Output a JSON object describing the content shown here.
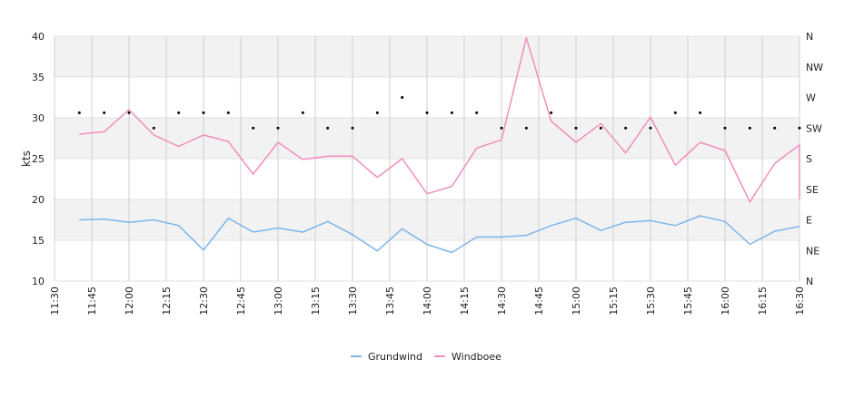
{
  "chart_data": {
    "type": "line",
    "ylabel": "kts",
    "ylim": [
      10,
      40
    ],
    "y_ticks": [
      10,
      15,
      20,
      25,
      30,
      35,
      40
    ],
    "right_axis": {
      "type": "wind-direction",
      "ticks": [
        "N",
        "NE",
        "E",
        "SE",
        "S",
        "SW",
        "W",
        "NW",
        "N"
      ]
    },
    "x_range": [
      "11:30",
      "16:30"
    ],
    "x_tick_labels": [
      "11:30",
      "11:45",
      "12:00",
      "12:15",
      "12:30",
      "12:45",
      "13:00",
      "13:15",
      "13:30",
      "13:45",
      "14:00",
      "14:15",
      "14:30",
      "14:45",
      "15:00",
      "15:15",
      "15:30",
      "15:45",
      "16:00",
      "16:15",
      "16:30"
    ],
    "x": [
      "11:40",
      "11:50",
      "12:00",
      "12:10",
      "12:20",
      "12:30",
      "12:40",
      "12:50",
      "13:00",
      "13:10",
      "13:20",
      "13:30",
      "13:40",
      "13:50",
      "14:00",
      "14:10",
      "14:20",
      "14:30",
      "14:40",
      "14:50",
      "15:00",
      "15:10",
      "15:20",
      "15:30",
      "15:40",
      "15:50",
      "16:00",
      "16:10",
      "16:20",
      "16:30"
    ],
    "series": [
      {
        "name": "Grundwind",
        "color": "#7cb5ec",
        "values": [
          17.5,
          17.6,
          17.2,
          17.5,
          16.8,
          13.8,
          17.7,
          16.0,
          16.5,
          16.0,
          17.3,
          15.7,
          13.7,
          16.4,
          14.5,
          13.5,
          15.4,
          15.4,
          15.6,
          16.8,
          17.7,
          16.2,
          17.2,
          17.4,
          16.8,
          18.0,
          17.3,
          14.5,
          16.1,
          16.7
        ]
      },
      {
        "name": "Windboee",
        "color": "#f18dbf",
        "values": [
          28.0,
          28.3,
          31.0,
          27.9,
          26.5,
          27.9,
          27.1,
          23.1,
          27.0,
          24.9,
          25.3,
          25.3,
          22.7,
          25.0,
          20.7,
          21.6,
          26.3,
          27.3,
          39.8,
          29.6,
          27.0,
          29.3,
          25.7,
          30.1,
          24.2,
          27.0,
          26.0,
          19.7,
          24.4,
          26.7
        ]
      }
    ],
    "end_point": {
      "x": "16:30",
      "value": 20.0
    },
    "direction_series": {
      "unit": "compass-degrees",
      "values": [
        247.5,
        247.5,
        247.5,
        225,
        247.5,
        247.5,
        247.5,
        225,
        225,
        247.5,
        225,
        225,
        247.5,
        270,
        247.5,
        247.5,
        247.5,
        225,
        225,
        247.5,
        225,
        225,
        225,
        225,
        247.5,
        247.5,
        225,
        225,
        225,
        225
      ]
    },
    "grid": true,
    "banding": true,
    "legend_position": "bottom-center"
  }
}
